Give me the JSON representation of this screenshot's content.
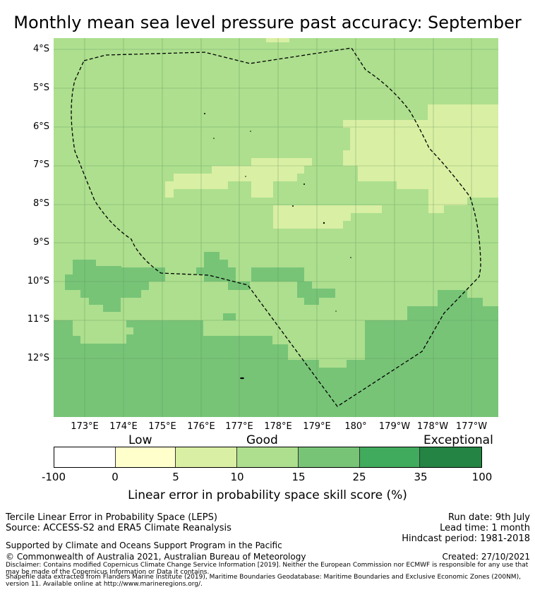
{
  "title": "Monthly mean sea level pressure past accuracy: September",
  "map": {
    "lat_labels": [
      "4°S",
      "5°S",
      "6°S",
      "7°S",
      "8°S",
      "9°S",
      "10°S",
      "11°S",
      "12°S"
    ],
    "lon_labels": [
      "173°E",
      "174°E",
      "175°E",
      "176°E",
      "177°E",
      "178°E",
      "179°E",
      "180°",
      "179°W",
      "178°W",
      "177°W"
    ],
    "colors": {
      "band_15_25": "#77c477",
      "band_10_15": "#addf8e",
      "band_5_10": "#d9efa3",
      "band_0_5": "#ffffcc"
    }
  },
  "colorbar": {
    "categories": [
      "Low",
      "Good",
      "Exceptional"
    ],
    "ticks": [
      "-100",
      "0",
      "5",
      "10",
      "15",
      "25",
      "35",
      "100"
    ],
    "colors": [
      "#ffffff",
      "#ffffcc",
      "#d9efa3",
      "#addf8e",
      "#77c477",
      "#41ab5d",
      "#238443"
    ],
    "title": "Linear error in probability space skill score (%)"
  },
  "footer": {
    "line1_left": "Tercile Linear Error in Probability Space (LEPS)",
    "line2_left": "Source: ACCESS-S2 and ERA5 Climate Reanalysis",
    "run_date": "Run date: 9th July",
    "lead_time": "Lead time: 1 month",
    "hindcast": "Hindcast period: 1981-2018",
    "supported": "Supported by Climate and Oceans Support Program in the Pacific",
    "copyright": "© Commonwealth of Australia 2021, Australian Bureau of Meteorology",
    "created": "Created: 27/10/2021",
    "disclaimer": "Disclaimer: Contains modified Copernicus Climate Change Service Information [2019]. Neither the European Commission nor ECMWF is responsible for any use that may be made of the Copernicus Information or Data it contains.",
    "shapefile": "Shapefile data extracted from Flanders Marine Institute (2019), Maritime Boundaries Geodatabase: Maritime Boundaries and Exclusive Economic Zones (200NM), version 11. Available online at http://www.marineregions.org/."
  }
}
